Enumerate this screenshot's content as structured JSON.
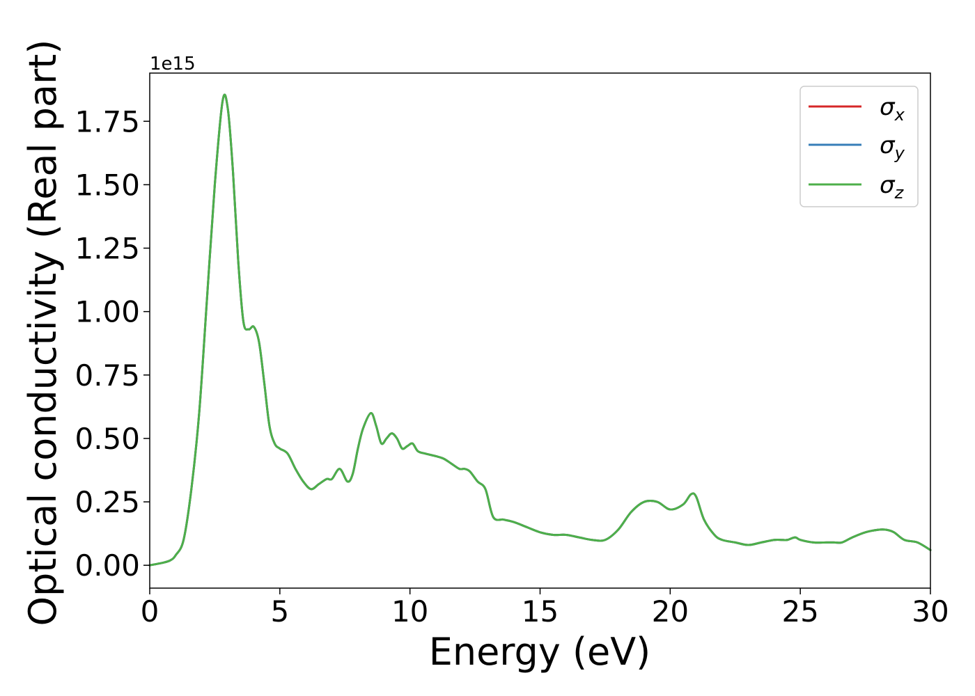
{
  "chart_data": {
    "type": "line",
    "xlabel": "Energy (eV)",
    "ylabel": "Optical conductivity (Real part)",
    "y_offset_label": "1e15",
    "xlim": [
      0,
      30
    ],
    "ylim": [
      -0.09,
      1.94
    ],
    "grid": false,
    "legend_position": "top-right",
    "x_ticks": [
      "0",
      "5",
      "10",
      "15",
      "20",
      "25",
      "30"
    ],
    "y_ticks": [
      "0.00",
      "0.25",
      "0.50",
      "0.75",
      "1.00",
      "1.25",
      "1.50",
      "1.75"
    ],
    "x": [
      0,
      0.5,
      0.8,
      1.0,
      1.3,
      1.6,
      1.9,
      2.2,
      2.5,
      2.8,
      3.0,
      3.2,
      3.4,
      3.6,
      3.8,
      4.0,
      4.2,
      4.4,
      4.6,
      4.8,
      5.0,
      5.3,
      5.6,
      5.9,
      6.2,
      6.5,
      6.8,
      7.0,
      7.3,
      7.6,
      7.8,
      8.0,
      8.2,
      8.5,
      8.7,
      8.9,
      9.1,
      9.3,
      9.5,
      9.7,
      9.9,
      10.1,
      10.3,
      10.6,
      11.0,
      11.3,
      11.6,
      11.9,
      12.1,
      12.3,
      12.6,
      12.9,
      13.2,
      13.6,
      14.0,
      14.5,
      15.0,
      15.5,
      16.0,
      16.5,
      17.0,
      17.5,
      18.0,
      18.5,
      19.0,
      19.5,
      20.0,
      20.5,
      20.8,
      21.0,
      21.3,
      21.7,
      22.0,
      22.5,
      23.0,
      23.5,
      24.0,
      24.3,
      24.5,
      24.8,
      25.0,
      25.5,
      26.0,
      26.3,
      26.6,
      27.0,
      27.5,
      28.0,
      28.3,
      28.6,
      29.0,
      29.5,
      30.0
    ],
    "series": [
      {
        "name": "σx",
        "color": "#d62728",
        "values": [
          0.0,
          0.01,
          0.02,
          0.04,
          0.1,
          0.3,
          0.6,
          1.05,
          1.5,
          1.83,
          1.8,
          1.55,
          1.2,
          0.96,
          0.93,
          0.94,
          0.88,
          0.72,
          0.55,
          0.48,
          0.46,
          0.44,
          0.38,
          0.33,
          0.3,
          0.32,
          0.34,
          0.34,
          0.38,
          0.33,
          0.36,
          0.46,
          0.54,
          0.6,
          0.55,
          0.48,
          0.5,
          0.52,
          0.5,
          0.46,
          0.47,
          0.48,
          0.45,
          0.44,
          0.43,
          0.42,
          0.4,
          0.38,
          0.38,
          0.37,
          0.33,
          0.3,
          0.19,
          0.18,
          0.17,
          0.15,
          0.13,
          0.12,
          0.12,
          0.11,
          0.1,
          0.1,
          0.14,
          0.21,
          0.25,
          0.25,
          0.22,
          0.24,
          0.28,
          0.27,
          0.18,
          0.12,
          0.1,
          0.09,
          0.08,
          0.09,
          0.1,
          0.1,
          0.1,
          0.11,
          0.1,
          0.09,
          0.09,
          0.09,
          0.09,
          0.11,
          0.13,
          0.14,
          0.14,
          0.13,
          0.1,
          0.09,
          0.06
        ]
      },
      {
        "name": "σy",
        "color": "#377eb8",
        "values": [
          0.0,
          0.01,
          0.02,
          0.04,
          0.1,
          0.3,
          0.6,
          1.05,
          1.5,
          1.83,
          1.8,
          1.55,
          1.2,
          0.96,
          0.93,
          0.94,
          0.88,
          0.72,
          0.55,
          0.48,
          0.46,
          0.44,
          0.38,
          0.33,
          0.3,
          0.32,
          0.34,
          0.34,
          0.38,
          0.33,
          0.36,
          0.46,
          0.54,
          0.6,
          0.55,
          0.48,
          0.5,
          0.52,
          0.5,
          0.46,
          0.47,
          0.48,
          0.45,
          0.44,
          0.43,
          0.42,
          0.4,
          0.38,
          0.38,
          0.37,
          0.33,
          0.3,
          0.19,
          0.18,
          0.17,
          0.15,
          0.13,
          0.12,
          0.12,
          0.11,
          0.1,
          0.1,
          0.14,
          0.21,
          0.25,
          0.25,
          0.22,
          0.24,
          0.28,
          0.27,
          0.18,
          0.12,
          0.1,
          0.09,
          0.08,
          0.09,
          0.1,
          0.1,
          0.1,
          0.11,
          0.1,
          0.09,
          0.09,
          0.09,
          0.09,
          0.11,
          0.13,
          0.14,
          0.14,
          0.13,
          0.1,
          0.09,
          0.06
        ]
      },
      {
        "name": "σz",
        "color": "#4daf4a",
        "values": [
          0.0,
          0.01,
          0.02,
          0.04,
          0.1,
          0.3,
          0.6,
          1.05,
          1.5,
          1.83,
          1.8,
          1.55,
          1.2,
          0.96,
          0.93,
          0.94,
          0.88,
          0.72,
          0.55,
          0.48,
          0.46,
          0.44,
          0.38,
          0.33,
          0.3,
          0.32,
          0.34,
          0.34,
          0.38,
          0.33,
          0.36,
          0.46,
          0.54,
          0.6,
          0.55,
          0.48,
          0.5,
          0.52,
          0.5,
          0.46,
          0.47,
          0.48,
          0.45,
          0.44,
          0.43,
          0.42,
          0.4,
          0.38,
          0.38,
          0.37,
          0.33,
          0.3,
          0.19,
          0.18,
          0.17,
          0.15,
          0.13,
          0.12,
          0.12,
          0.11,
          0.1,
          0.1,
          0.14,
          0.21,
          0.25,
          0.25,
          0.22,
          0.24,
          0.28,
          0.27,
          0.18,
          0.12,
          0.1,
          0.09,
          0.08,
          0.09,
          0.1,
          0.1,
          0.1,
          0.11,
          0.1,
          0.09,
          0.09,
          0.09,
          0.09,
          0.11,
          0.13,
          0.14,
          0.14,
          0.13,
          0.1,
          0.09,
          0.06
        ]
      }
    ],
    "legend": [
      {
        "symbol": "σ",
        "subscript": "x",
        "color": "#d62728"
      },
      {
        "symbol": "σ",
        "subscript": "y",
        "color": "#377eb8"
      },
      {
        "symbol": "σ",
        "subscript": "z",
        "color": "#4daf4a"
      }
    ]
  }
}
